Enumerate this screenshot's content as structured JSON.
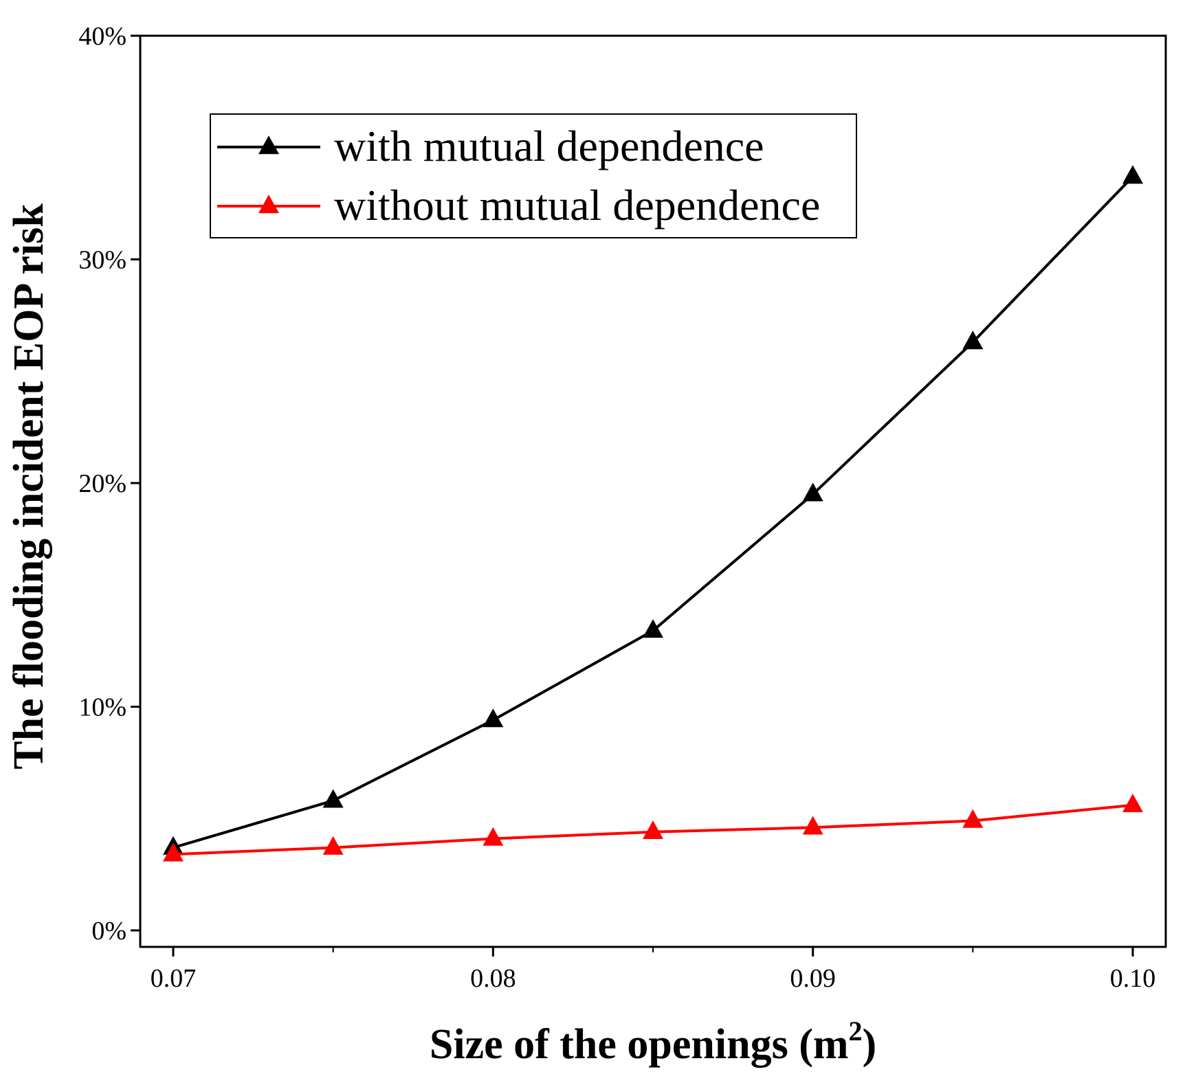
{
  "chart_data": {
    "type": "line",
    "title": "",
    "xlabel": "Size of the openings (m",
    "xlabel_superscript": "2",
    "xlabel_suffix": ")",
    "ylabel": "The flooding incident EOP risk",
    "xlim": [
      0.07,
      0.1
    ],
    "ylim": [
      0,
      40
    ],
    "x_ticks": [
      "0.07",
      "0.08",
      "0.09",
      "0.10"
    ],
    "y_ticks": [
      "0%",
      "10%",
      "20%",
      "30%",
      "40%"
    ],
    "x_tick_values": [
      0.07,
      0.08,
      0.09,
      0.1
    ],
    "y_tick_values": [
      0,
      10,
      20,
      30,
      40
    ],
    "x": [
      0.07,
      0.075,
      0.08,
      0.085,
      0.09,
      0.095,
      0.1
    ],
    "series": [
      {
        "name": "with mutual dependence",
        "color": "#000000",
        "marker": "triangle",
        "values": [
          3.7,
          5.8,
          9.4,
          13.4,
          19.5,
          26.3,
          33.7
        ]
      },
      {
        "name": "without mutual dependence",
        "color": "#ff0000",
        "marker": "triangle",
        "values": [
          3.4,
          3.7,
          4.1,
          4.4,
          4.6,
          4.9,
          5.6
        ]
      }
    ],
    "legend_position": "top-left",
    "grid": false
  }
}
